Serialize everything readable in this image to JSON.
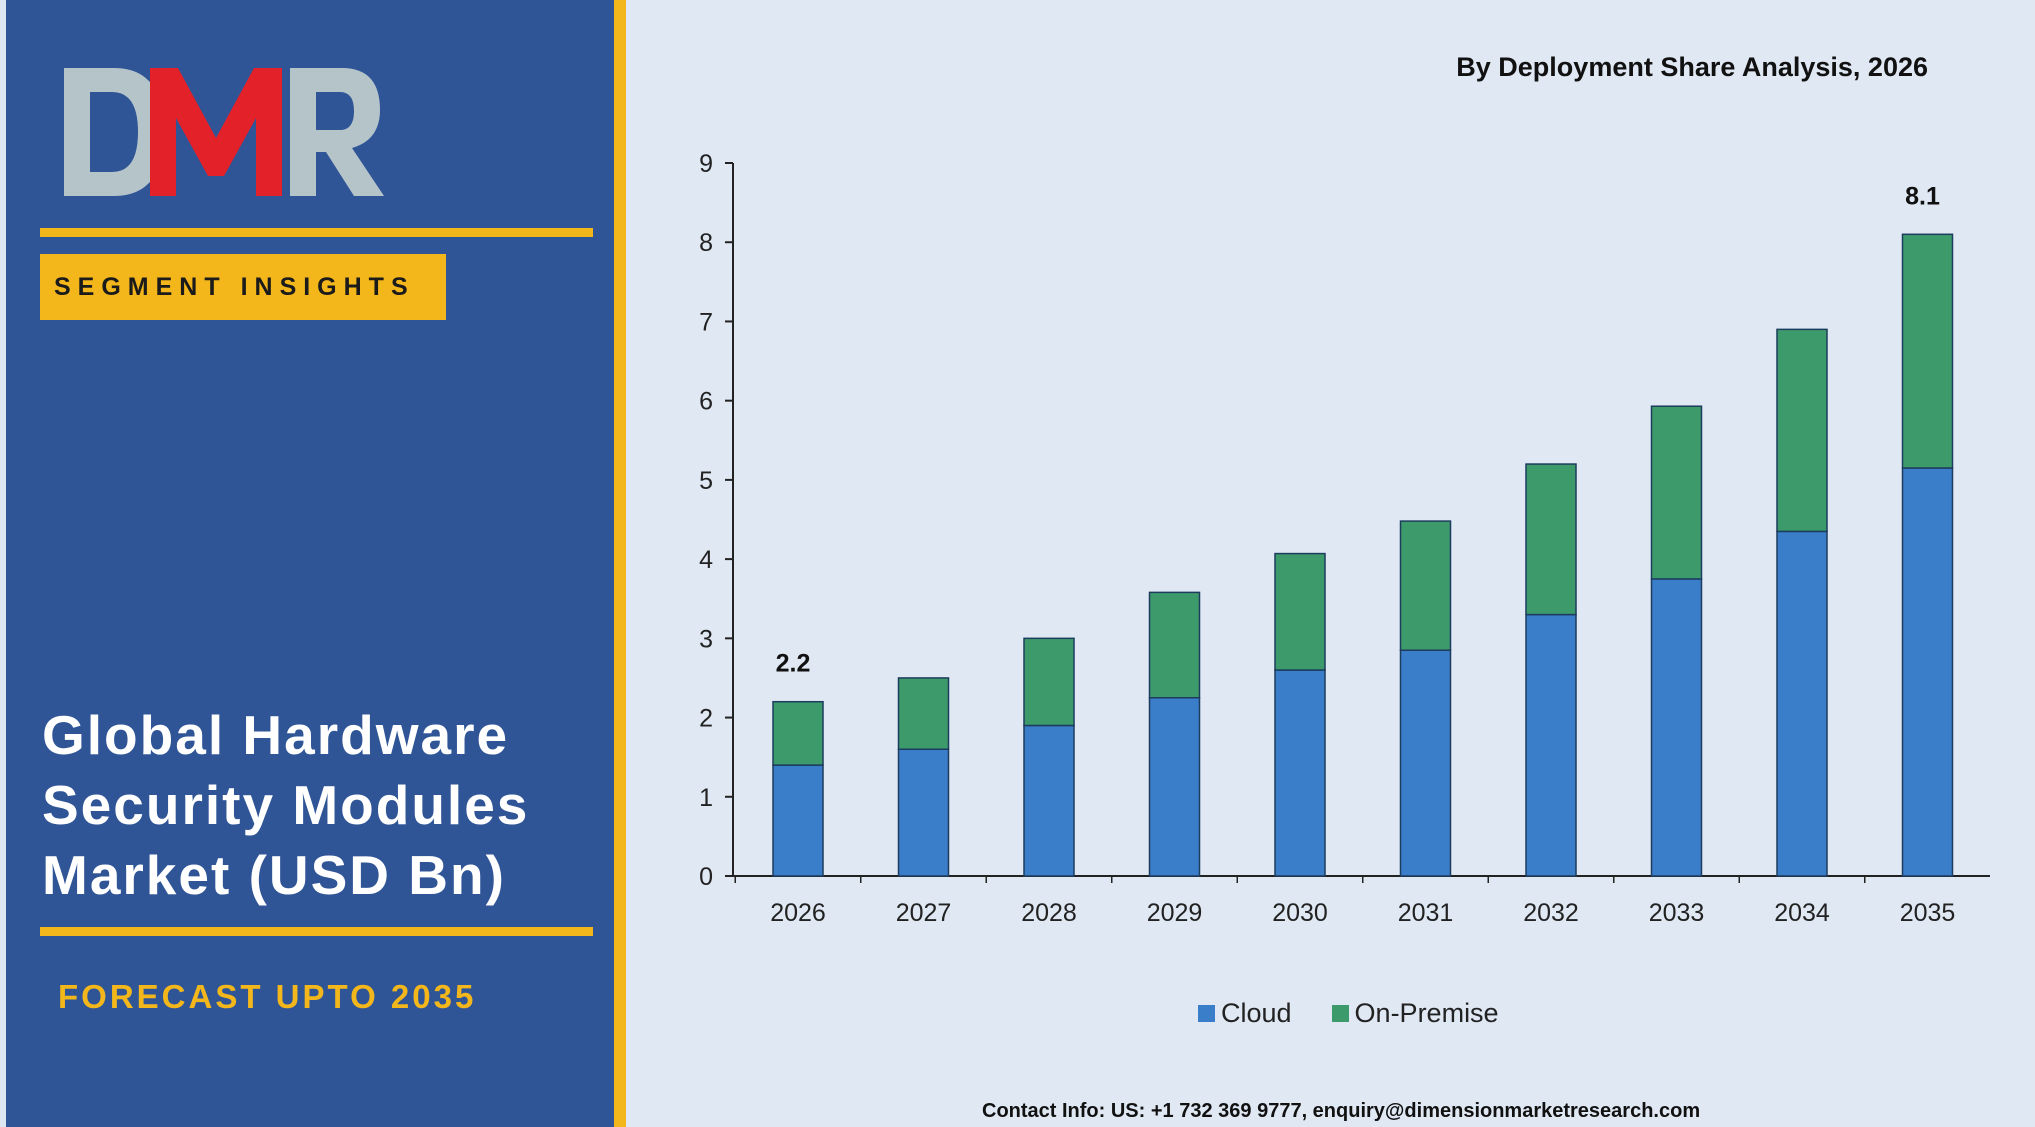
{
  "branding": {
    "logo_text": "DMR",
    "segment_badge": "SEGMENT INSIGHTS",
    "market_title_lines": [
      "Global Hardware",
      "Security Modules",
      "Market (USD Bn)"
    ],
    "forecast": "FORECAST UPTO 2035",
    "colors": {
      "panel": "#2f5597",
      "accent": "#f3b71b",
      "logo_red": "#e32129",
      "logo_grey": "#b5c4c9"
    }
  },
  "chart_data": {
    "type": "bar",
    "stacked": true,
    "title": "By Deployment Share Analysis, 2026",
    "categories": [
      "2026",
      "2027",
      "2028",
      "2029",
      "2030",
      "2031",
      "2032",
      "2033",
      "2034",
      "2035"
    ],
    "series": [
      {
        "name": "Cloud",
        "color": "#3a7dc8",
        "values": [
          1.4,
          1.6,
          1.9,
          2.25,
          2.6,
          2.85,
          3.3,
          3.75,
          4.35,
          5.15
        ]
      },
      {
        "name": "On-Premise",
        "color": "#3c9a6b",
        "values": [
          0.8,
          0.9,
          1.1,
          1.33,
          1.47,
          1.63,
          1.9,
          2.18,
          2.55,
          2.95
        ]
      }
    ],
    "data_labels": [
      {
        "category": "2026",
        "text": "2.2"
      },
      {
        "category": "2035",
        "text": "8.1"
      }
    ],
    "ylim": [
      0,
      9
    ],
    "yticks": [
      0,
      1,
      2,
      3,
      4,
      5,
      6,
      7,
      8,
      9
    ],
    "grid": false,
    "legend": "bottom"
  },
  "footer": {
    "contact": "Contact Info: US: +1 732 369 9777, enquiry@dimensionmarketresearch.com"
  }
}
